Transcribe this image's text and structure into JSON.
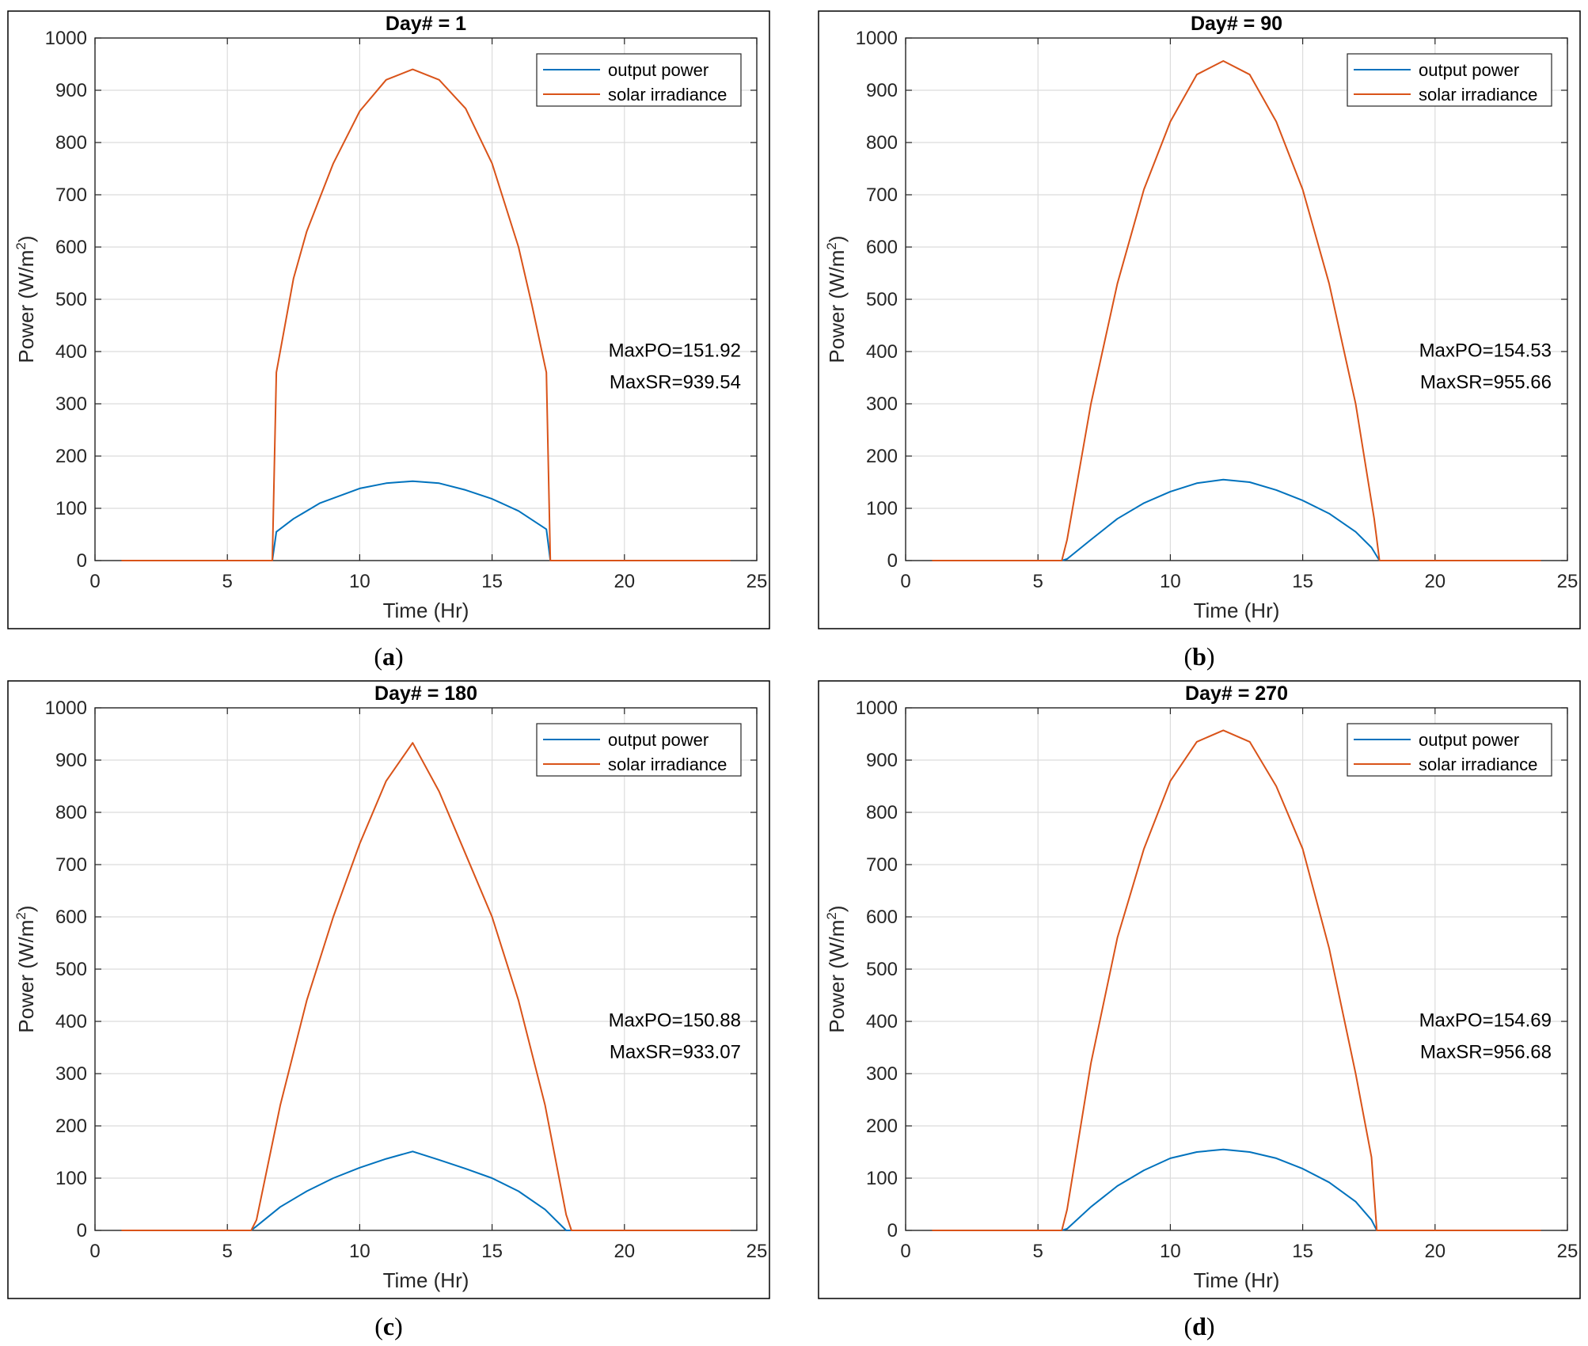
{
  "figure": {
    "colors": {
      "output_power": "#0072BD",
      "solar_irradiance": "#D95319",
      "grid": "#DCDCDC",
      "axis": "#262626",
      "frame": "#000000",
      "background": "#FFFFFF"
    }
  },
  "chart_data": [
    {
      "type": "line",
      "title": "Day# = 1",
      "caption": "(a)",
      "caption_letter": "a",
      "xlabel": "Time (Hr)",
      "ylabel": "Power (W/m2)",
      "xlim": [
        0,
        25
      ],
      "ylim": [
        0,
        1000
      ],
      "xticks": [
        "0",
        "5",
        "10",
        "15",
        "20",
        "25"
      ],
      "yticks": [
        "0",
        "100",
        "200",
        "300",
        "400",
        "500",
        "600",
        "700",
        "800",
        "900",
        "1000"
      ],
      "grid": true,
      "legend_position": "top-right",
      "legend": [
        "output power",
        "solar irradiance"
      ],
      "annotations": [
        "MaxPO=151.92",
        "MaxSR=939.54"
      ],
      "series": [
        {
          "name": "output power",
          "color": "#0072BD",
          "x": [
            1,
            6.7,
            6.85,
            7.5,
            8.5,
            10,
            11,
            12,
            13,
            14,
            15,
            16,
            17.05,
            17.2,
            24
          ],
          "y": [
            0,
            0,
            55,
            80,
            110,
            138,
            148,
            152,
            148,
            135,
            118,
            95,
            60,
            0,
            0
          ]
        },
        {
          "name": "solar irradiance",
          "color": "#D95319",
          "x": [
            1,
            6.7,
            6.85,
            7.5,
            8,
            9,
            10,
            11,
            12,
            13,
            14,
            15,
            16,
            16.5,
            17.05,
            17.2,
            24
          ],
          "y": [
            0,
            0,
            360,
            540,
            630,
            760,
            860,
            920,
            940,
            920,
            865,
            760,
            600,
            490,
            360,
            0,
            0
          ]
        }
      ]
    },
    {
      "type": "line",
      "title": "Day# = 90",
      "caption": "(b)",
      "caption_letter": "b",
      "xlabel": "Time (Hr)",
      "ylabel": "Power (W/m2)",
      "xlim": [
        0,
        25
      ],
      "ylim": [
        0,
        1000
      ],
      "xticks": [
        "0",
        "5",
        "10",
        "15",
        "20",
        "25"
      ],
      "yticks": [
        "0",
        "100",
        "200",
        "300",
        "400",
        "500",
        "600",
        "700",
        "800",
        "900",
        "1000"
      ],
      "grid": true,
      "legend_position": "top-right",
      "legend": [
        "output power",
        "solar irradiance"
      ],
      "annotations": [
        "MaxPO=154.53",
        "MaxSR=955.66"
      ],
      "series": [
        {
          "name": "output power",
          "color": "#0072BD",
          "x": [
            1,
            5.9,
            6.1,
            7,
            8,
            9,
            10,
            11,
            12,
            13,
            14,
            15,
            16,
            17,
            17.6,
            17.9,
            24
          ],
          "y": [
            0,
            0,
            3,
            40,
            80,
            110,
            132,
            148,
            155,
            150,
            135,
            115,
            90,
            55,
            25,
            0,
            0
          ]
        },
        {
          "name": "solar irradiance",
          "color": "#D95319",
          "x": [
            1,
            5.9,
            6.1,
            7,
            8,
            9,
            10,
            11,
            12,
            13,
            14,
            15,
            16,
            17,
            17.7,
            17.9,
            24
          ],
          "y": [
            0,
            0,
            40,
            300,
            530,
            710,
            840,
            930,
            956,
            930,
            840,
            710,
            530,
            300,
            80,
            0,
            0
          ]
        }
      ]
    },
    {
      "type": "line",
      "title": "Day# = 180",
      "caption": "(c)",
      "caption_letter": "c",
      "xlabel": "Time (Hr)",
      "ylabel": "Power (W/m2)",
      "xlim": [
        0,
        25
      ],
      "ylim": [
        0,
        1000
      ],
      "xticks": [
        "0",
        "5",
        "10",
        "15",
        "20",
        "25"
      ],
      "yticks": [
        "0",
        "100",
        "200",
        "300",
        "400",
        "500",
        "600",
        "700",
        "800",
        "900",
        "1000"
      ],
      "grid": true,
      "legend_position": "top-right",
      "legend": [
        "output power",
        "solar irradiance"
      ],
      "annotations": [
        "MaxPO=150.88",
        "MaxSR=933.07"
      ],
      "series": [
        {
          "name": "output power",
          "color": "#0072BD",
          "x": [
            1,
            5.9,
            6.1,
            7,
            8,
            9,
            10,
            11,
            12,
            13,
            14,
            15,
            16,
            17,
            17.8,
            24
          ],
          "y": [
            0,
            0,
            8,
            45,
            75,
            100,
            120,
            137,
            151,
            135,
            118,
            100,
            75,
            40,
            0,
            0
          ]
        },
        {
          "name": "solar irradiance",
          "color": "#D95319",
          "x": [
            1,
            5.9,
            6.1,
            7,
            8,
            9,
            10,
            11,
            12,
            13,
            14,
            15,
            16,
            17,
            17.8,
            18,
            24
          ],
          "y": [
            0,
            0,
            20,
            240,
            440,
            600,
            740,
            860,
            933,
            840,
            720,
            600,
            440,
            240,
            30,
            0,
            0
          ]
        }
      ]
    },
    {
      "type": "line",
      "title": "Day# = 270",
      "caption": "(d)",
      "caption_letter": "d",
      "xlabel": "Time (Hr)",
      "ylabel": "Power (W/m2)",
      "xlim": [
        0,
        25
      ],
      "ylim": [
        0,
        1000
      ],
      "xticks": [
        "0",
        "5",
        "10",
        "15",
        "20",
        "25"
      ],
      "yticks": [
        "0",
        "100",
        "200",
        "300",
        "400",
        "500",
        "600",
        "700",
        "800",
        "900",
        "1000"
      ],
      "grid": true,
      "legend_position": "top-right",
      "legend": [
        "output power",
        "solar irradiance"
      ],
      "annotations": [
        "MaxPO=154.69",
        "MaxSR=956.68"
      ],
      "series": [
        {
          "name": "output power",
          "color": "#0072BD",
          "x": [
            1,
            5.9,
            6.1,
            7,
            8,
            9,
            10,
            11,
            12,
            13,
            14,
            15,
            16,
            17,
            17.6,
            17.8,
            24
          ],
          "y": [
            0,
            0,
            3,
            45,
            85,
            115,
            138,
            150,
            155,
            150,
            138,
            118,
            92,
            55,
            20,
            0,
            0
          ]
        },
        {
          "name": "solar irradiance",
          "color": "#D95319",
          "x": [
            1,
            5.9,
            6.1,
            7,
            8,
            9,
            10,
            11,
            12,
            13,
            14,
            15,
            16,
            17,
            17.6,
            17.8,
            24
          ],
          "y": [
            0,
            0,
            40,
            320,
            560,
            730,
            860,
            935,
            957,
            935,
            850,
            730,
            540,
            300,
            140,
            0,
            0
          ]
        }
      ]
    }
  ]
}
